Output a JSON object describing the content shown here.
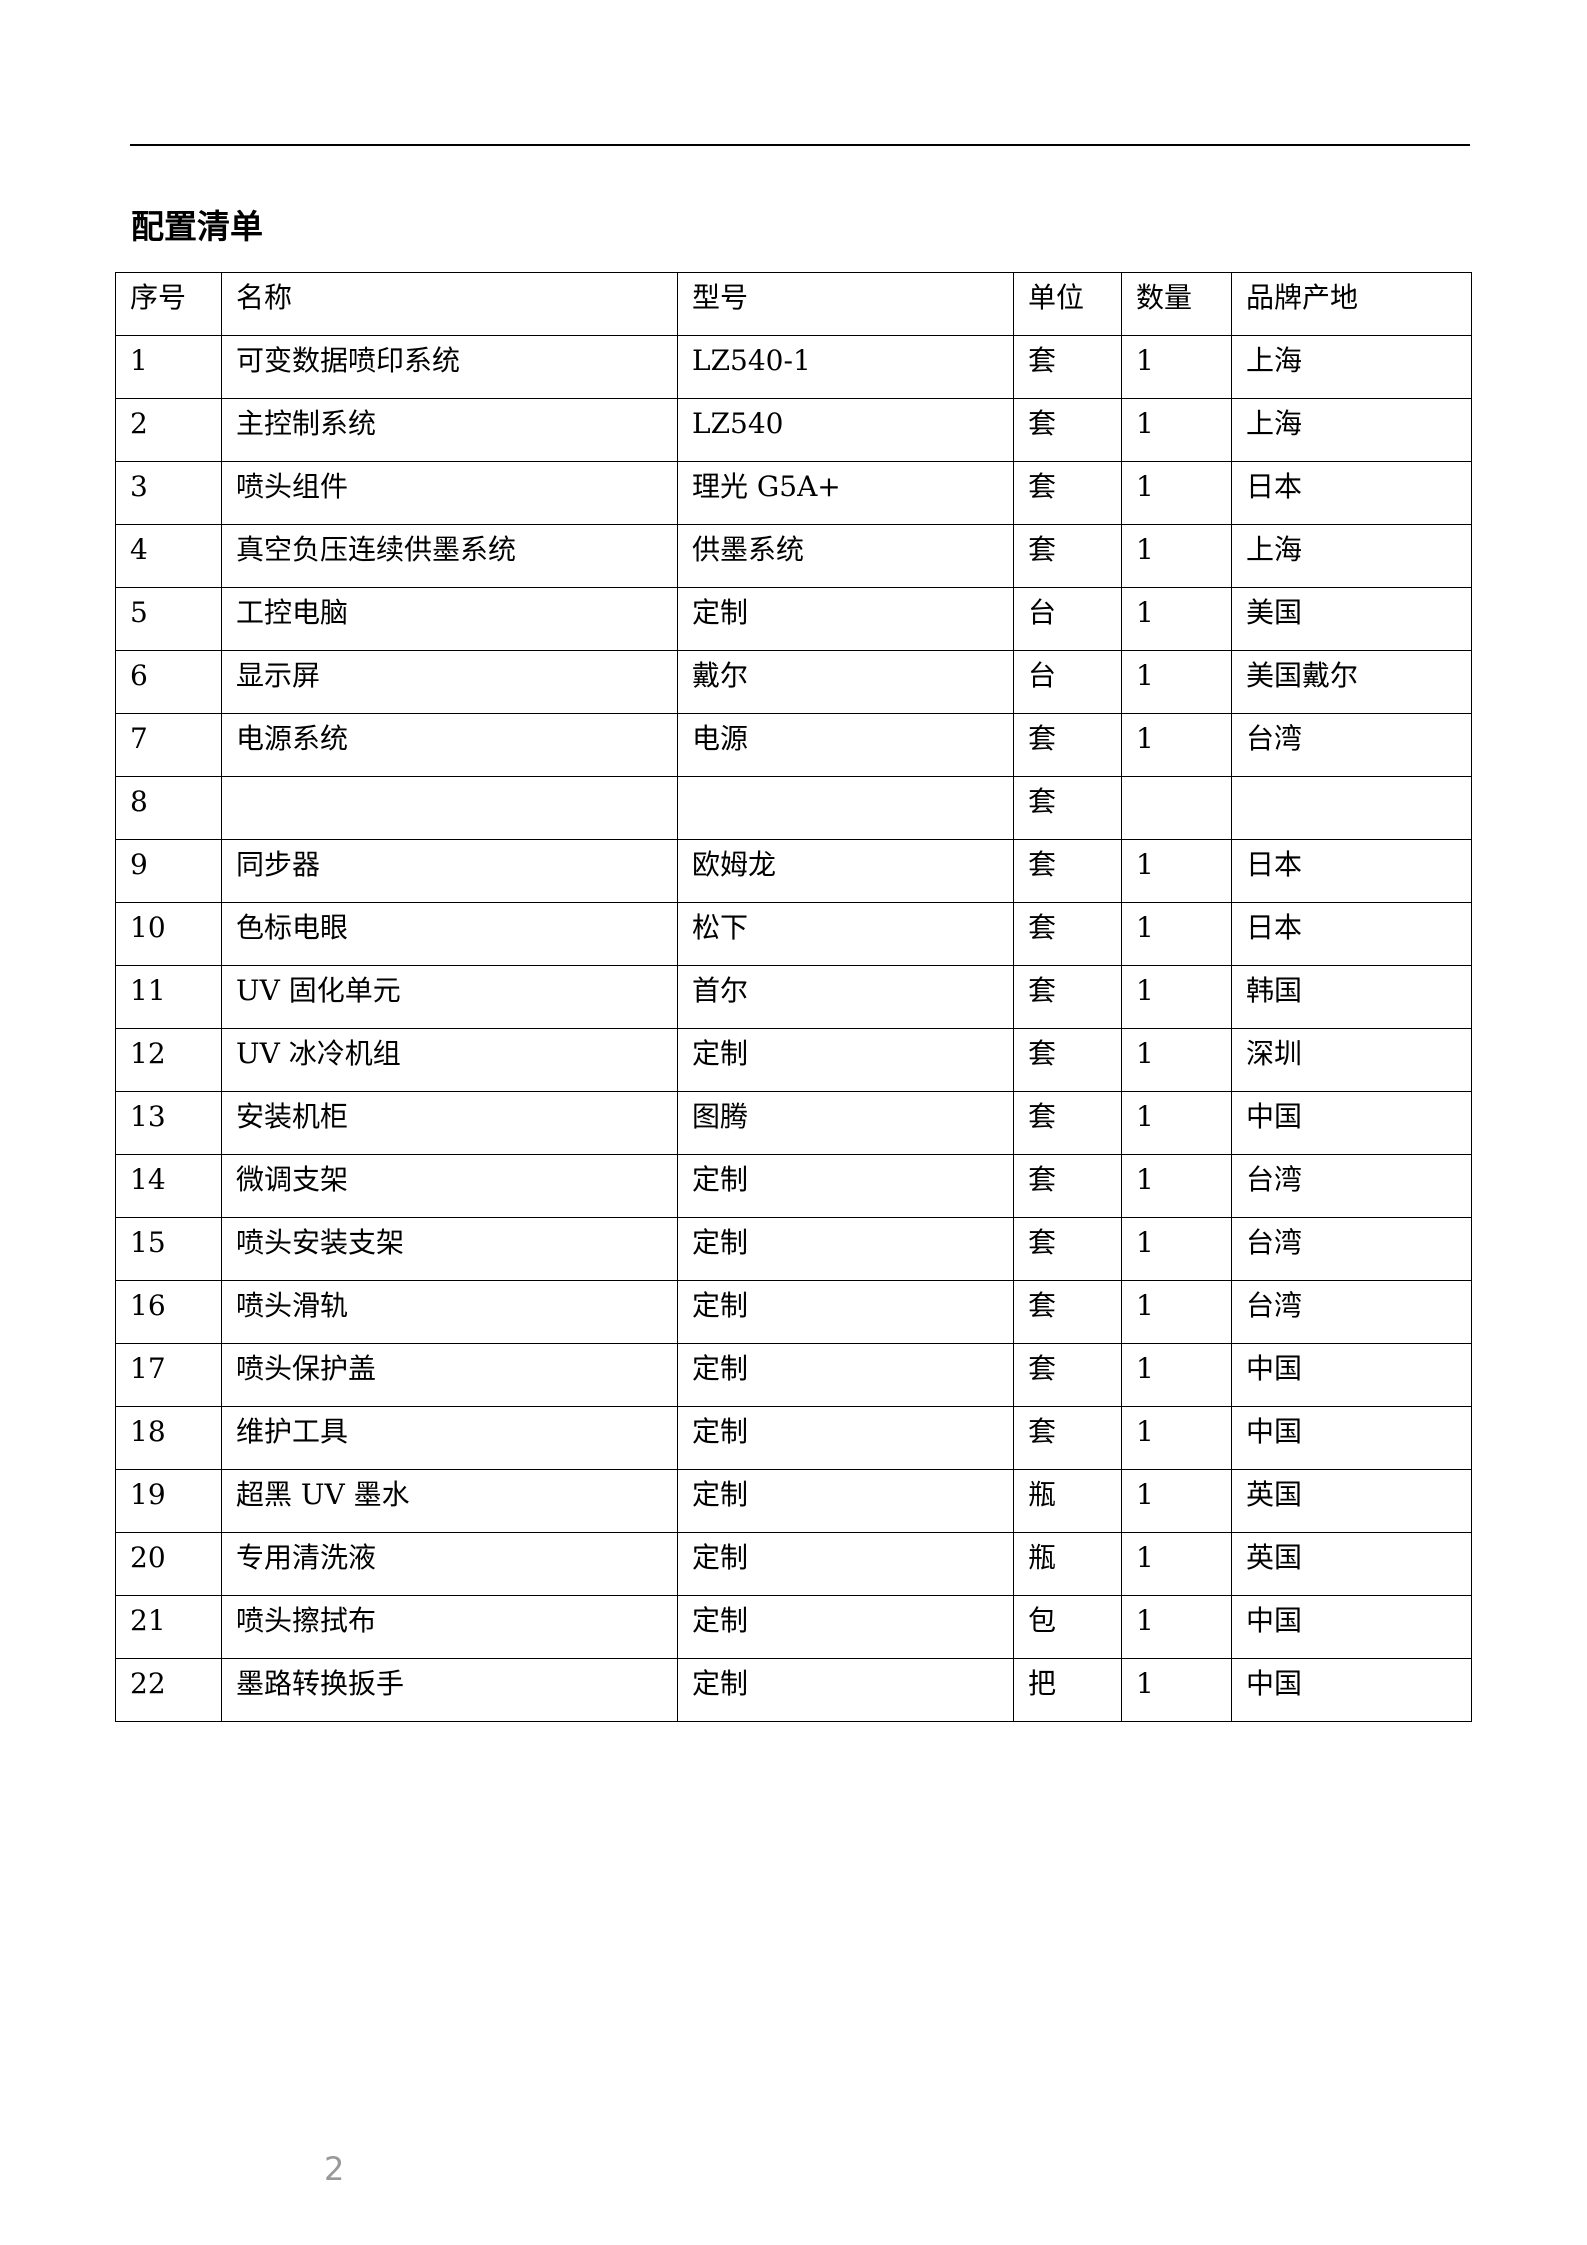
{
  "title": "配置清单",
  "table": {
    "headers": [
      "序号",
      "名称",
      "型号",
      "单位",
      "数量",
      "品牌产地"
    ],
    "rows": [
      [
        "1",
        "可变数据喷印系统",
        "LZ540-1",
        "套",
        "1",
        "上海"
      ],
      [
        "2",
        "主控制系统",
        "LZ540",
        "套",
        "1",
        "上海"
      ],
      [
        "3",
        "喷头组件",
        "理光 G5A+",
        "套",
        "1",
        "日本"
      ],
      [
        "4",
        "真空负压连续供墨系统",
        "供墨系统",
        "套",
        "1",
        "上海"
      ],
      [
        "5",
        "工控电脑",
        "定制",
        "台",
        "1",
        "美国"
      ],
      [
        "6",
        "显示屏",
        "戴尔",
        "台",
        "1",
        "美国戴尔"
      ],
      [
        "7",
        "电源系统",
        "电源",
        "套",
        "1",
        "台湾"
      ],
      [
        "8",
        "",
        "",
        "套",
        "",
        ""
      ],
      [
        "9",
        "同步器",
        "欧姆龙",
        "套",
        "1",
        "日本"
      ],
      [
        "10",
        "色标电眼",
        "松下",
        "套",
        "1",
        "日本"
      ],
      [
        "11",
        "UV 固化单元",
        "首尔",
        "套",
        "1",
        "韩国"
      ],
      [
        "12",
        "UV 冰冷机组",
        "定制",
        "套",
        "1",
        "深圳"
      ],
      [
        "13",
        "安装机柜",
        "图腾",
        "套",
        "1",
        "中国"
      ],
      [
        "14",
        "微调支架",
        "定制",
        "套",
        "1",
        "台湾"
      ],
      [
        "15",
        "喷头安装支架",
        "定制",
        "套",
        "1",
        "台湾"
      ],
      [
        "16",
        "喷头滑轨",
        "定制",
        "套",
        "1",
        "台湾"
      ],
      [
        "17",
        "喷头保护盖",
        "定制",
        "套",
        "1",
        "中国"
      ],
      [
        "18",
        "维护工具",
        "定制",
        "套",
        "1",
        "中国"
      ],
      [
        "19",
        "超黑 UV 墨水",
        "定制",
        "瓶",
        "1",
        "英国"
      ],
      [
        "20",
        "专用清洗液",
        "定制",
        "瓶",
        "1",
        "英国"
      ],
      [
        "21",
        "喷头擦拭布",
        "定制",
        "包",
        "1",
        "中国"
      ],
      [
        "22",
        "墨路转换扳手",
        "定制",
        "把",
        "1",
        "中国"
      ]
    ]
  },
  "page_number": "2"
}
